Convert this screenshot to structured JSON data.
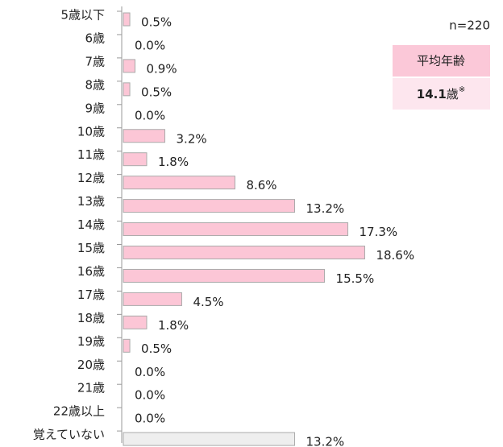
{
  "chart_data": {
    "type": "bar",
    "orientation": "horizontal",
    "categories": [
      "5歳以下",
      "6歳",
      "7歳",
      "8歳",
      "9歳",
      "10歳",
      "11歳",
      "12歳",
      "13歳",
      "14歳",
      "15歳",
      "16歳",
      "17歳",
      "18歳",
      "19歳",
      "20歳",
      "21歳",
      "22歳以上",
      "覚えていない"
    ],
    "values": [
      0.5,
      0.0,
      0.9,
      0.5,
      0.0,
      3.2,
      1.8,
      8.6,
      13.2,
      17.3,
      18.6,
      15.5,
      4.5,
      1.8,
      0.5,
      0.0,
      0.0,
      0.0,
      13.2
    ],
    "value_labels": [
      "0.5%",
      "0.0%",
      "0.9%",
      "0.5%",
      "0.0%",
      "3.2%",
      "1.8%",
      "8.6%",
      "13.2%",
      "17.3%",
      "18.6%",
      "15.5%",
      "4.5%",
      "1.8%",
      "0.5%",
      "0.0%",
      "0.0%",
      "0.0%",
      "13.2%"
    ],
    "colors": [
      "#fcc6d6",
      "#fcc6d6",
      "#fcc6d6",
      "#fcc6d6",
      "#fcc6d6",
      "#fcc6d6",
      "#fcc6d6",
      "#fcc6d6",
      "#fcc6d6",
      "#fcc6d6",
      "#fcc6d6",
      "#fcc6d6",
      "#fcc6d6",
      "#fcc6d6",
      "#fcc6d6",
      "#fcc6d6",
      "#fcc6d6",
      "#fcc6d6",
      "#eeeeee"
    ],
    "note": "n=220",
    "average_label": "平均年齢",
    "average_value": "14.1",
    "average_unit": "歳",
    "average_mark": "※"
  }
}
